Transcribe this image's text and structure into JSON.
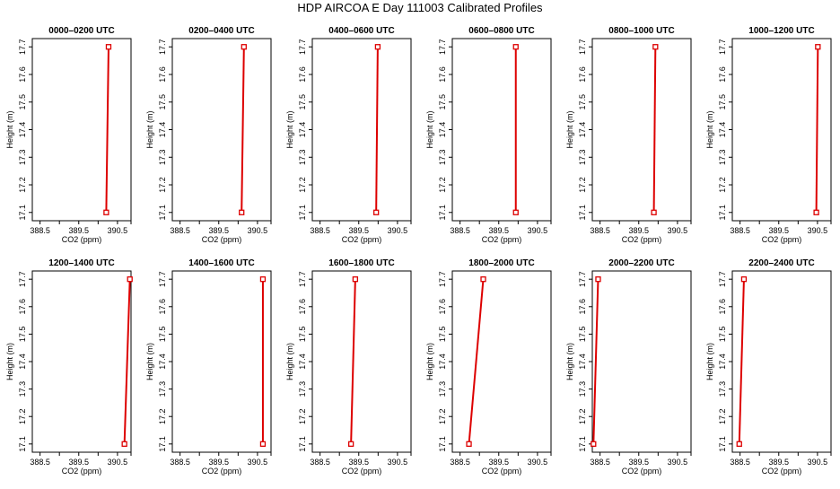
{
  "title": "HDP AIRCOA E  Day 111003  Calibrated Profiles",
  "colors": {
    "profile": "#dd0000",
    "axis": "#000000",
    "background": "#ffffff"
  },
  "chart_data": [
    {
      "type": "line",
      "title": "0000–0200 UTC",
      "xlabel": "CO2 (ppm)",
      "ylabel": "Height (m)",
      "xlim": [
        388.3,
        390.85
      ],
      "ylim": [
        17.07,
        17.73
      ],
      "xticks": [
        "388.5",
        "389.5",
        "390.5"
      ],
      "xticks_unlabeled": [
        389.0,
        390.0
      ],
      "yticks": [
        "17.1",
        "17.2",
        "17.3",
        "17.4",
        "17.5",
        "17.6",
        "17.7"
      ],
      "x": [
        390.21,
        390.27
      ],
      "y": [
        17.1,
        17.7
      ]
    },
    {
      "type": "line",
      "title": "0200–0400 UTC",
      "xlabel": "CO2 (ppm)",
      "ylabel": "Height (m)",
      "xlim": [
        388.3,
        390.85
      ],
      "ylim": [
        17.07,
        17.73
      ],
      "xticks": [
        "388.5",
        "389.5",
        "390.5"
      ],
      "xticks_unlabeled": [
        389.0,
        390.0
      ],
      "yticks": [
        "17.1",
        "17.2",
        "17.3",
        "17.4",
        "17.5",
        "17.6",
        "17.7"
      ],
      "x": [
        390.09,
        390.15
      ],
      "y": [
        17.1,
        17.7
      ]
    },
    {
      "type": "line",
      "title": "0400–0600 UTC",
      "xlabel": "CO2 (ppm)",
      "ylabel": "Height (m)",
      "xlim": [
        388.3,
        390.85
      ],
      "ylim": [
        17.07,
        17.73
      ],
      "xticks": [
        "388.5",
        "389.5",
        "390.5"
      ],
      "xticks_unlabeled": [
        389.0,
        390.0
      ],
      "yticks": [
        "17.1",
        "17.2",
        "17.3",
        "17.4",
        "17.5",
        "17.6",
        "17.7"
      ],
      "x": [
        389.95,
        389.99
      ],
      "y": [
        17.1,
        17.7
      ]
    },
    {
      "type": "line",
      "title": "0600–0800 UTC",
      "xlabel": "CO2 (ppm)",
      "ylabel": "Height (m)",
      "xlim": [
        388.3,
        390.85
      ],
      "ylim": [
        17.07,
        17.73
      ],
      "xticks": [
        "388.5",
        "389.5",
        "390.5"
      ],
      "xticks_unlabeled": [
        389.0,
        390.0
      ],
      "yticks": [
        "17.1",
        "17.2",
        "17.3",
        "17.4",
        "17.5",
        "17.6",
        "17.7"
      ],
      "x": [
        389.94,
        389.94
      ],
      "y": [
        17.1,
        17.7
      ]
    },
    {
      "type": "line",
      "title": "0800–1000 UTC",
      "xlabel": "CO2 (ppm)",
      "ylabel": "Height (m)",
      "xlim": [
        388.3,
        390.85
      ],
      "ylim": [
        17.07,
        17.73
      ],
      "xticks": [
        "388.5",
        "389.5",
        "390.5"
      ],
      "xticks_unlabeled": [
        389.0,
        390.0
      ],
      "yticks": [
        "17.1",
        "17.2",
        "17.3",
        "17.4",
        "17.5",
        "17.6",
        "17.7"
      ],
      "x": [
        389.89,
        389.93
      ],
      "y": [
        17.1,
        17.7
      ]
    },
    {
      "type": "line",
      "title": "1000–1200 UTC",
      "xlabel": "CO2 (ppm)",
      "ylabel": "Height (m)",
      "xlim": [
        388.3,
        390.85
      ],
      "ylim": [
        17.07,
        17.73
      ],
      "xticks": [
        "388.5",
        "389.5",
        "390.5"
      ],
      "xticks_unlabeled": [
        389.0,
        390.0
      ],
      "yticks": [
        "17.1",
        "17.2",
        "17.3",
        "17.4",
        "17.5",
        "17.6",
        "17.7"
      ],
      "x": [
        390.47,
        390.51
      ],
      "y": [
        17.1,
        17.7
      ]
    },
    {
      "type": "line",
      "title": "1200–1400 UTC",
      "xlabel": "CO2 (ppm)",
      "ylabel": "Height (m)",
      "xlim": [
        388.3,
        390.85
      ],
      "ylim": [
        17.07,
        17.73
      ],
      "xticks": [
        "388.5",
        "389.5",
        "390.5"
      ],
      "xticks_unlabeled": [
        389.0,
        390.0
      ],
      "yticks": [
        "17.1",
        "17.2",
        "17.3",
        "17.4",
        "17.5",
        "17.6",
        "17.7"
      ],
      "x": [
        390.68,
        390.82
      ],
      "y": [
        17.1,
        17.7
      ]
    },
    {
      "type": "line",
      "title": "1400–1600 UTC",
      "xlabel": "CO2 (ppm)",
      "ylabel": "Height (m)",
      "xlim": [
        388.3,
        390.85
      ],
      "ylim": [
        17.07,
        17.73
      ],
      "xticks": [
        "388.5",
        "389.5",
        "390.5"
      ],
      "xticks_unlabeled": [
        389.0,
        390.0
      ],
      "yticks": [
        "17.1",
        "17.2",
        "17.3",
        "17.4",
        "17.5",
        "17.6",
        "17.7"
      ],
      "x": [
        390.64,
        390.64
      ],
      "y": [
        17.1,
        17.7
      ]
    },
    {
      "type": "line",
      "title": "1600–1800 UTC",
      "xlabel": "CO2 (ppm)",
      "ylabel": "Height (m)",
      "xlim": [
        388.3,
        390.85
      ],
      "ylim": [
        17.07,
        17.73
      ],
      "xticks": [
        "388.5",
        "389.5",
        "390.5"
      ],
      "xticks_unlabeled": [
        389.0,
        390.0
      ],
      "yticks": [
        "17.1",
        "17.2",
        "17.3",
        "17.4",
        "17.5",
        "17.6",
        "17.7"
      ],
      "x": [
        389.3,
        389.41
      ],
      "y": [
        17.1,
        17.7
      ]
    },
    {
      "type": "line",
      "title": "1800–2000 UTC",
      "xlabel": "CO2 (ppm)",
      "ylabel": "Height (m)",
      "xlim": [
        388.3,
        390.85
      ],
      "ylim": [
        17.07,
        17.73
      ],
      "xticks": [
        "388.5",
        "389.5",
        "390.5"
      ],
      "xticks_unlabeled": [
        389.0,
        390.0
      ],
      "yticks": [
        "17.1",
        "17.2",
        "17.3",
        "17.4",
        "17.5",
        "17.6",
        "17.7"
      ],
      "x": [
        388.73,
        389.1
      ],
      "y": [
        17.1,
        17.7
      ]
    },
    {
      "type": "line",
      "title": "2000–2200 UTC",
      "xlabel": "CO2 (ppm)",
      "ylabel": "Height (m)",
      "xlim": [
        388.3,
        390.85
      ],
      "ylim": [
        17.07,
        17.73
      ],
      "xticks": [
        "388.5",
        "389.5",
        "390.5"
      ],
      "xticks_unlabeled": [
        389.0,
        390.0
      ],
      "yticks": [
        "17.1",
        "17.2",
        "17.3",
        "17.4",
        "17.5",
        "17.6",
        "17.7"
      ],
      "x": [
        388.33,
        388.45
      ],
      "y": [
        17.1,
        17.7
      ]
    },
    {
      "type": "line",
      "title": "2200–2400 UTC",
      "xlabel": "CO2 (ppm)",
      "ylabel": "Height (m)",
      "xlim": [
        388.3,
        390.85
      ],
      "ylim": [
        17.07,
        17.73
      ],
      "xticks": [
        "388.5",
        "389.5",
        "390.5"
      ],
      "xticks_unlabeled": [
        389.0,
        390.0
      ],
      "yticks": [
        "17.1",
        "17.2",
        "17.3",
        "17.4",
        "17.5",
        "17.6",
        "17.7"
      ],
      "x": [
        388.48,
        388.6
      ],
      "y": [
        17.1,
        17.7
      ]
    }
  ]
}
